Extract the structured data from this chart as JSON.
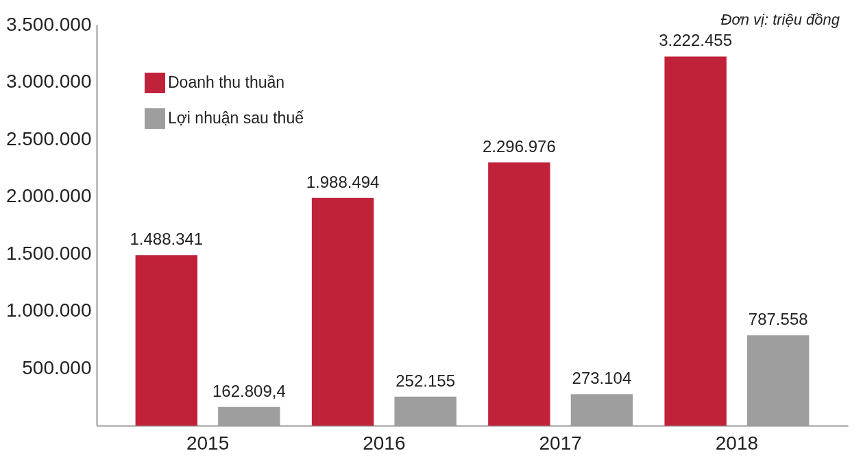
{
  "chart_data": {
    "type": "bar",
    "annotations": [
      "Đơn vị: triệu đồng"
    ],
    "categories": [
      "2015",
      "2016",
      "2017",
      "2018"
    ],
    "series": [
      {
        "name": "Doanh thu thuần",
        "color": "#c0223a",
        "values": [
          1488341,
          1988494,
          2296976,
          3222455
        ],
        "value_labels": [
          "1.488.341",
          "1.988.494",
          "2.296.976",
          "3.222.455"
        ]
      },
      {
        "name": "Lợi nhuận sau thuế",
        "color": "#9e9e9e",
        "values": [
          162809.4,
          252155,
          273104,
          787558
        ],
        "value_labels": [
          "162.809,4",
          "252.155",
          "273.104",
          "787.558"
        ]
      }
    ],
    "ylim": [
      0,
      3500000
    ],
    "yticks": [
      {
        "value": 500000,
        "label": "500.000"
      },
      {
        "value": 1000000,
        "label": "1.000.000"
      },
      {
        "value": 1500000,
        "label": "1.500.000"
      },
      {
        "value": 2000000,
        "label": "2.000.000"
      },
      {
        "value": 2500000,
        "label": "2.500.000"
      },
      {
        "value": 3000000,
        "label": "3.000.000"
      },
      {
        "value": 3500000,
        "label": "3.500.000"
      }
    ],
    "grid": false,
    "legend": "top left"
  }
}
